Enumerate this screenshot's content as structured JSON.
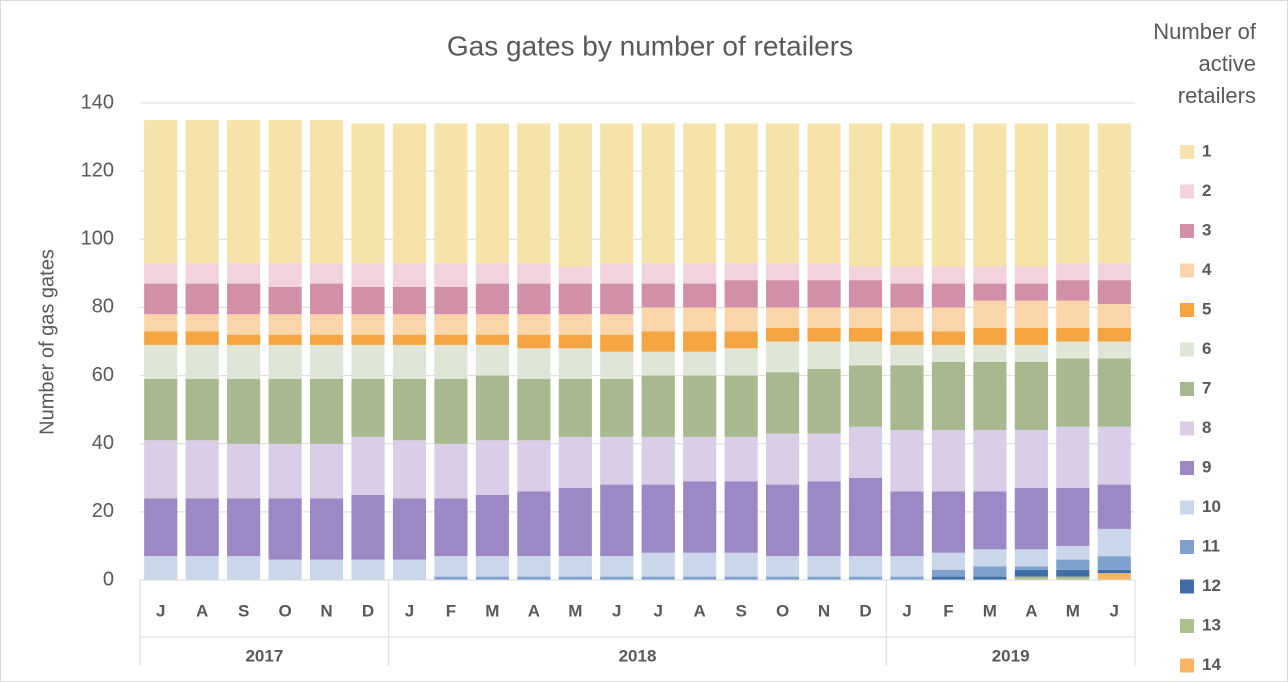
{
  "chart_data": {
    "type": "stacked_bar",
    "title": "Gas gates by number of retailers",
    "y_label": "Number of gas gates",
    "legend_title": "Number of active retailers",
    "legend": "right",
    "grid": true,
    "ylim": [
      0,
      140
    ],
    "yticks": [
      0,
      20,
      40,
      60,
      80,
      100,
      120,
      140
    ],
    "groups": [
      {
        "label": "2017",
        "months": [
          "J",
          "A",
          "S",
          "O",
          "N",
          "D"
        ]
      },
      {
        "label": "2018",
        "months": [
          "J",
          "F",
          "M",
          "A",
          "M",
          "J",
          "J",
          "A",
          "S",
          "O",
          "N",
          "D"
        ]
      },
      {
        "label": "2019",
        "months": [
          "J",
          "F",
          "M",
          "A",
          "M",
          "J"
        ]
      }
    ],
    "series": [
      {
        "name": "1",
        "color": "#f6e3a9",
        "values": [
          42,
          42,
          42,
          42,
          42,
          41,
          41,
          41,
          41,
          41,
          42,
          41,
          41,
          41,
          41,
          41,
          41,
          42,
          42,
          42,
          42,
          42,
          41,
          41
        ]
      },
      {
        "name": "2",
        "color": "#f1d2dd",
        "values": [
          6,
          6,
          6,
          7,
          6,
          7,
          7,
          7,
          6,
          6,
          5,
          6,
          6,
          6,
          5,
          5,
          5,
          4,
          5,
          5,
          5,
          5,
          5,
          5
        ]
      },
      {
        "name": "3",
        "color": "#d18fa8",
        "values": [
          9,
          9,
          9,
          8,
          9,
          8,
          8,
          8,
          9,
          9,
          9,
          9,
          7,
          7,
          8,
          8,
          8,
          8,
          7,
          7,
          5,
          5,
          6,
          7
        ]
      },
      {
        "name": "4",
        "color": "#fbd5aa",
        "values": [
          5,
          5,
          6,
          6,
          6,
          6,
          6,
          6,
          6,
          6,
          6,
          6,
          7,
          7,
          7,
          6,
          6,
          6,
          7,
          7,
          8,
          8,
          8,
          7
        ]
      },
      {
        "name": "5",
        "color": "#f4a541",
        "values": [
          4,
          4,
          3,
          3,
          3,
          3,
          3,
          3,
          3,
          4,
          4,
          5,
          6,
          6,
          5,
          4,
          4,
          4,
          4,
          4,
          5,
          5,
          4,
          4
        ]
      },
      {
        "name": "6",
        "color": "#dfe5d7",
        "values": [
          10,
          10,
          10,
          10,
          10,
          10,
          10,
          10,
          9,
          9,
          9,
          8,
          7,
          7,
          8,
          9,
          8,
          7,
          6,
          5,
          5,
          5,
          5,
          5
        ]
      },
      {
        "name": "7",
        "color": "#a8b88f",
        "values": [
          18,
          18,
          19,
          19,
          19,
          17,
          18,
          19,
          19,
          18,
          17,
          17,
          18,
          18,
          18,
          18,
          19,
          18,
          19,
          20,
          20,
          20,
          20,
          20
        ]
      },
      {
        "name": "8",
        "color": "#d9cde7",
        "values": [
          17,
          17,
          16,
          16,
          16,
          17,
          17,
          16,
          16,
          15,
          15,
          14,
          14,
          13,
          13,
          15,
          14,
          15,
          18,
          18,
          18,
          17,
          18,
          17
        ]
      },
      {
        "name": "9",
        "color": "#9d88c6",
        "values": [
          17,
          17,
          17,
          18,
          18,
          19,
          18,
          17,
          18,
          19,
          20,
          21,
          20,
          21,
          21,
          21,
          22,
          23,
          19,
          18,
          17,
          18,
          17,
          13
        ]
      },
      {
        "name": "10",
        "color": "#cad7eb",
        "values": [
          7,
          7,
          7,
          6,
          6,
          6,
          6,
          6,
          6,
          6,
          6,
          6,
          7,
          7,
          7,
          6,
          6,
          6,
          6,
          5,
          5,
          5,
          4,
          8
        ]
      },
      {
        "name": "11",
        "color": "#7fa1cd",
        "values": [
          0,
          0,
          0,
          0,
          0,
          0,
          0,
          1,
          1,
          1,
          1,
          1,
          1,
          1,
          1,
          1,
          1,
          1,
          1,
          2,
          3,
          1,
          3,
          4
        ]
      },
      {
        "name": "12",
        "color": "#3f6fa6",
        "values": [
          0,
          0,
          0,
          0,
          0,
          0,
          0,
          0,
          0,
          0,
          0,
          0,
          0,
          0,
          0,
          0,
          0,
          0,
          0,
          1,
          1,
          2,
          2,
          1
        ]
      },
      {
        "name": "13",
        "color": "#aac18b",
        "values": [
          0,
          0,
          0,
          0,
          0,
          0,
          0,
          0,
          0,
          0,
          0,
          0,
          0,
          0,
          0,
          0,
          0,
          0,
          0,
          0,
          0,
          1,
          1,
          0
        ]
      },
      {
        "name": "14",
        "color": "#f5b564",
        "values": [
          0,
          0,
          0,
          0,
          0,
          0,
          0,
          0,
          0,
          0,
          0,
          0,
          0,
          0,
          0,
          0,
          0,
          0,
          0,
          0,
          0,
          0,
          0,
          2
        ]
      }
    ]
  }
}
